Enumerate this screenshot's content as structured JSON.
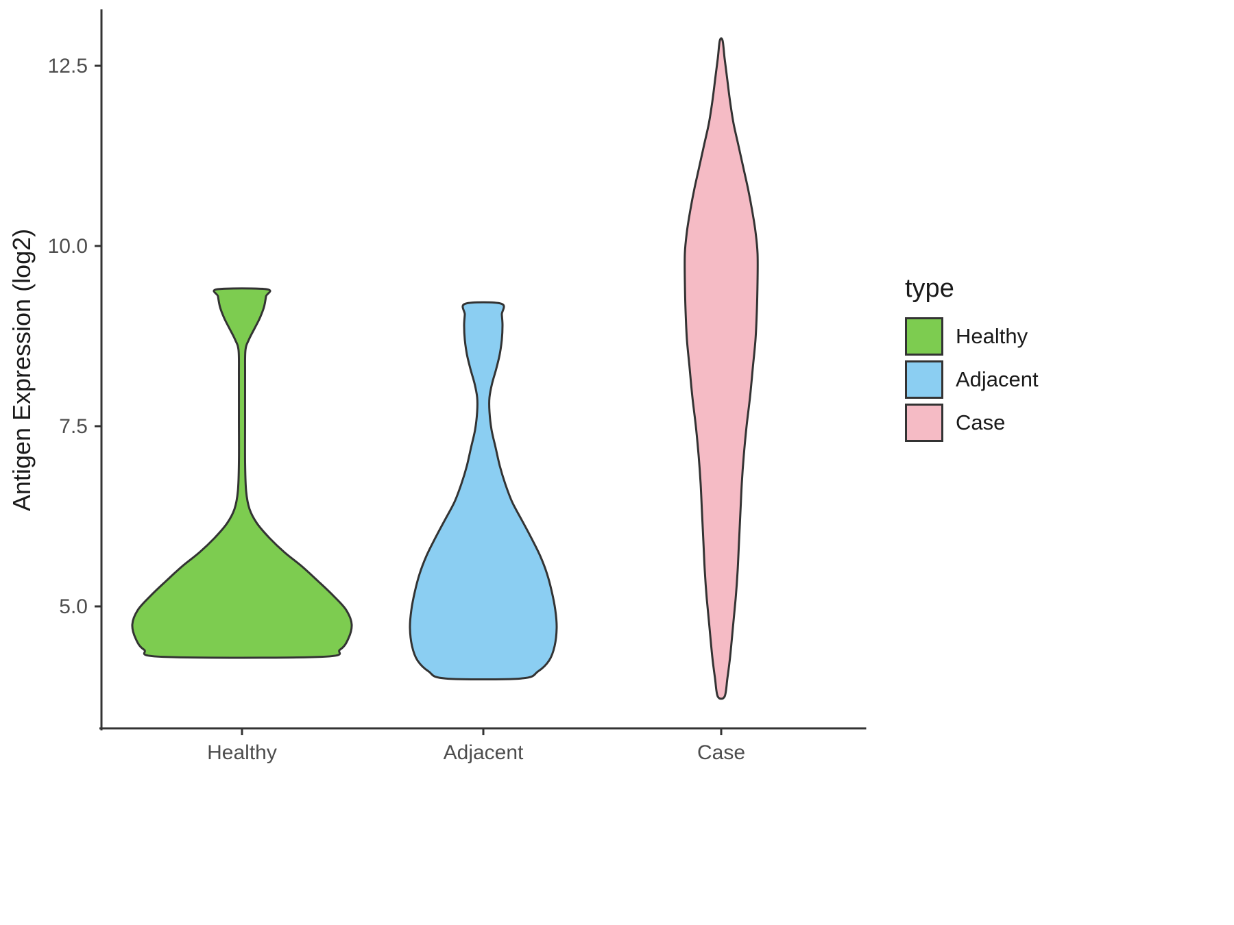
{
  "chart_data": {
    "type": "violin",
    "title": "",
    "xlabel": "",
    "ylabel": "Antigen Expression (log2)",
    "categories": [
      "Healthy",
      "Adjacent",
      "Case"
    ],
    "y_ticks": [
      5.0,
      7.5,
      10.0,
      12.5
    ],
    "y_tick_labels_top_down": [
      "12.5",
      "10.0",
      "7.5",
      "5.0"
    ],
    "ylim": [
      3.4,
      13.3
    ],
    "grid": "off",
    "legend": {
      "title": "type",
      "position": "right",
      "entries": [
        {
          "label": "Healthy",
          "color": "#7DCC50"
        },
        {
          "label": "Adjacent",
          "color": "#8BCEF2"
        },
        {
          "label": "Case",
          "color": "#F5BBC5"
        }
      ]
    },
    "outline_color": "#333333",
    "series": [
      {
        "name": "Healthy",
        "color": "#7DCC50",
        "range": [
          4.3,
          9.4
        ],
        "flat_bottom": true,
        "flat_top": true,
        "profile": [
          [
            4.3,
            115
          ],
          [
            4.4,
            143
          ],
          [
            4.55,
            155
          ],
          [
            4.75,
            160
          ],
          [
            4.95,
            152
          ],
          [
            5.15,
            133
          ],
          [
            5.35,
            111
          ],
          [
            5.55,
            88
          ],
          [
            5.75,
            62
          ],
          [
            5.95,
            40
          ],
          [
            6.15,
            22
          ],
          [
            6.35,
            11
          ],
          [
            6.6,
            6
          ],
          [
            7.0,
            4.5
          ],
          [
            7.6,
            4.5
          ],
          [
            8.2,
            4.5
          ],
          [
            8.55,
            5
          ],
          [
            8.7,
            10
          ],
          [
            8.85,
            18
          ],
          [
            9.0,
            26
          ],
          [
            9.15,
            32
          ],
          [
            9.3,
            35
          ],
          [
            9.4,
            36
          ]
        ]
      },
      {
        "name": "Adjacent",
        "color": "#8BCEF2",
        "range": [
          4.0,
          9.2
        ],
        "flat_bottom": true,
        "flat_top": true,
        "profile": [
          [
            4.0,
            55
          ],
          [
            4.1,
            80
          ],
          [
            4.25,
            96
          ],
          [
            4.45,
            104
          ],
          [
            4.7,
            107
          ],
          [
            4.95,
            105
          ],
          [
            5.2,
            100
          ],
          [
            5.45,
            93
          ],
          [
            5.7,
            83
          ],
          [
            5.95,
            70
          ],
          [
            6.2,
            56
          ],
          [
            6.45,
            42
          ],
          [
            6.7,
            32
          ],
          [
            6.95,
            24
          ],
          [
            7.2,
            18
          ],
          [
            7.45,
            12
          ],
          [
            7.7,
            9
          ],
          [
            7.9,
            9
          ],
          [
            8.1,
            13
          ],
          [
            8.3,
            19
          ],
          [
            8.5,
            24
          ],
          [
            8.7,
            27
          ],
          [
            8.9,
            28
          ],
          [
            9.05,
            27
          ],
          [
            9.2,
            26
          ]
        ]
      },
      {
        "name": "Case",
        "color": "#F5BBC5",
        "range": [
          3.75,
          12.85
        ],
        "flat_bottom": false,
        "flat_top": false,
        "profile": [
          [
            3.75,
            5
          ],
          [
            4.0,
            9
          ],
          [
            4.3,
            13
          ],
          [
            4.7,
            17
          ],
          [
            5.1,
            21
          ],
          [
            5.5,
            24
          ],
          [
            5.9,
            26
          ],
          [
            6.3,
            28
          ],
          [
            6.7,
            30
          ],
          [
            7.1,
            33
          ],
          [
            7.5,
            37
          ],
          [
            7.9,
            42
          ],
          [
            8.3,
            46
          ],
          [
            8.7,
            50
          ],
          [
            9.1,
            52
          ],
          [
            9.5,
            53
          ],
          [
            9.9,
            53
          ],
          [
            10.2,
            50
          ],
          [
            10.5,
            45
          ],
          [
            10.8,
            39
          ],
          [
            11.1,
            32
          ],
          [
            11.4,
            25
          ],
          [
            11.7,
            18
          ],
          [
            12.0,
            13
          ],
          [
            12.3,
            9
          ],
          [
            12.6,
            5
          ],
          [
            12.85,
            2
          ]
        ]
      }
    ]
  }
}
